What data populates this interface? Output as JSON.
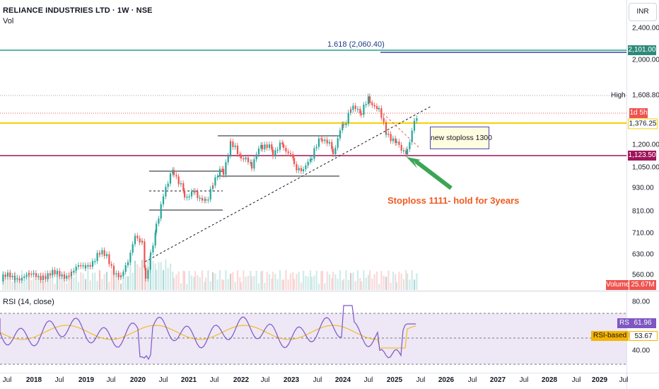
{
  "header": {
    "title": "RELIANCE INDUSTRIES LTD · 1W · NSE",
    "volume_label": "Vol",
    "currency_button": "INR"
  },
  "annotations": {
    "fib_label": "1.618 (2,060.40)",
    "note_box": "new stoploss 1300",
    "stoploss_text": "Stoploss 1111- hold for 3years"
  },
  "price_axis": {
    "labels": [
      "2,400.00",
      "2,000.00",
      "1,200.00",
      "1,050.00",
      "930.00",
      "810.00",
      "710.00",
      "630.00",
      "560.00"
    ],
    "high_label": "High",
    "tags": {
      "fib_level": "2,101.00",
      "high": "1,608.80",
      "countdown": "1d 5h",
      "yellow_level": "1,376.25",
      "stop_level": "1,123.50",
      "volume_name": "Volume",
      "volume_value": "25.67M"
    }
  },
  "rsi_pane": {
    "title": "RSI (14, close)",
    "levels": [
      "80.00",
      "40.00"
    ],
    "rsi_name": "RSI",
    "rsi_value": "61.96",
    "ma_name": "RSI-based MA",
    "ma_value": "53.67"
  },
  "time_axis": {
    "labels": [
      "Jul",
      "2018",
      "Jul",
      "2019",
      "Jul",
      "2020",
      "Jul",
      "2021",
      "Jul",
      "2022",
      "Jul",
      "2023",
      "Jul",
      "2024",
      "Jul",
      "2025",
      "Jul",
      "2026",
      "Jul",
      "2027",
      "Jul",
      "2028",
      "Jul",
      "2029",
      "Jul"
    ]
  },
  "colors": {
    "bull": "#26a69a",
    "bear": "#ef5350",
    "fib_line": "#22a08a",
    "fib_blue": "#3f3dab",
    "yellow_level": "#f7d100",
    "stop_level": "#a0155a",
    "rsi_line": "#7e57c2",
    "rsi_ma": "#f5b400",
    "rsi_band": "#ede7f6",
    "arrow": "#3aa655",
    "annotation_text": "#f05a22"
  },
  "chart_data": {
    "type": "candlestick",
    "symbol": "RELIANCE INDUSTRIES LTD",
    "timeframe": "1W",
    "exchange": "NSE",
    "x": [
      "2017-07",
      "2018-01",
      "2018-07",
      "2019-01",
      "2019-07",
      "2020-01",
      "2020-04",
      "2020-07",
      "2020-10",
      "2021-01",
      "2021-07",
      "2021-10",
      "2022-01",
      "2022-07",
      "2023-01",
      "2023-07",
      "2024-01",
      "2024-04",
      "2024-07",
      "2024-10",
      "2025-01",
      "2025-04",
      "2025-06"
    ],
    "close": [
      550,
      560,
      620,
      640,
      600,
      720,
      600,
      950,
      1020,
      930,
      1050,
      1220,
      1200,
      1230,
      1180,
      1250,
      1300,
      1450,
      1580,
      1400,
      1250,
      1380,
      1460
    ],
    "levels": {
      "fib_1_618": 2060.4,
      "fib_blue": 2101.0,
      "high": 1608.8,
      "yellow": 1376.25,
      "stoploss": 1123.5
    },
    "volume_last": "25.67M",
    "rsi": {
      "period": 14,
      "last": 61.96,
      "ma_last": 53.67,
      "upper": 80,
      "lower": 40
    }
  }
}
